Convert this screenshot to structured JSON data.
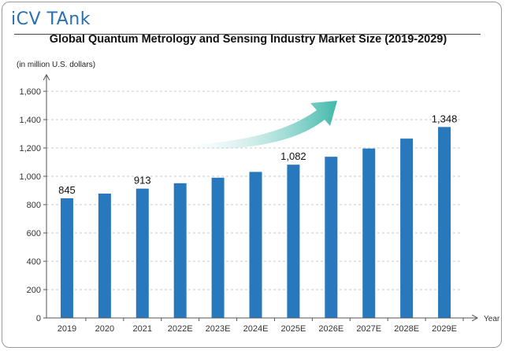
{
  "brand": {
    "logo_text": "iCV TAnk"
  },
  "chart_data": {
    "type": "bar",
    "title": "Global Quantum Metrology and Sensing Industry Market Size  (2019-2029)",
    "ylabel": "(in million U.S. dollars)",
    "xlabel": "Year",
    "ylim": [
      0,
      1600
    ],
    "yticks": [
      0,
      200,
      400,
      600,
      800,
      1000,
      1200,
      1400,
      1600
    ],
    "ytick_labels": [
      "0",
      "200",
      "400",
      "600",
      "800",
      "1,000",
      "1,200",
      "1,400",
      "1,600"
    ],
    "categories": [
      "2019",
      "2020",
      "2021",
      "2022E",
      "2023E",
      "2024E",
      "2025E",
      "2026E",
      "2027E",
      "2028E",
      "2029E"
    ],
    "values": [
      845,
      878,
      913,
      951,
      990,
      1031,
      1082,
      1138,
      1196,
      1266,
      1348
    ],
    "data_labels": [
      "845",
      "",
      "913",
      "",
      "",
      "",
      "1,082",
      "",
      "",
      "",
      "1,348"
    ],
    "bar_color": "#2878be",
    "grid": true,
    "trend_arrow": true
  }
}
